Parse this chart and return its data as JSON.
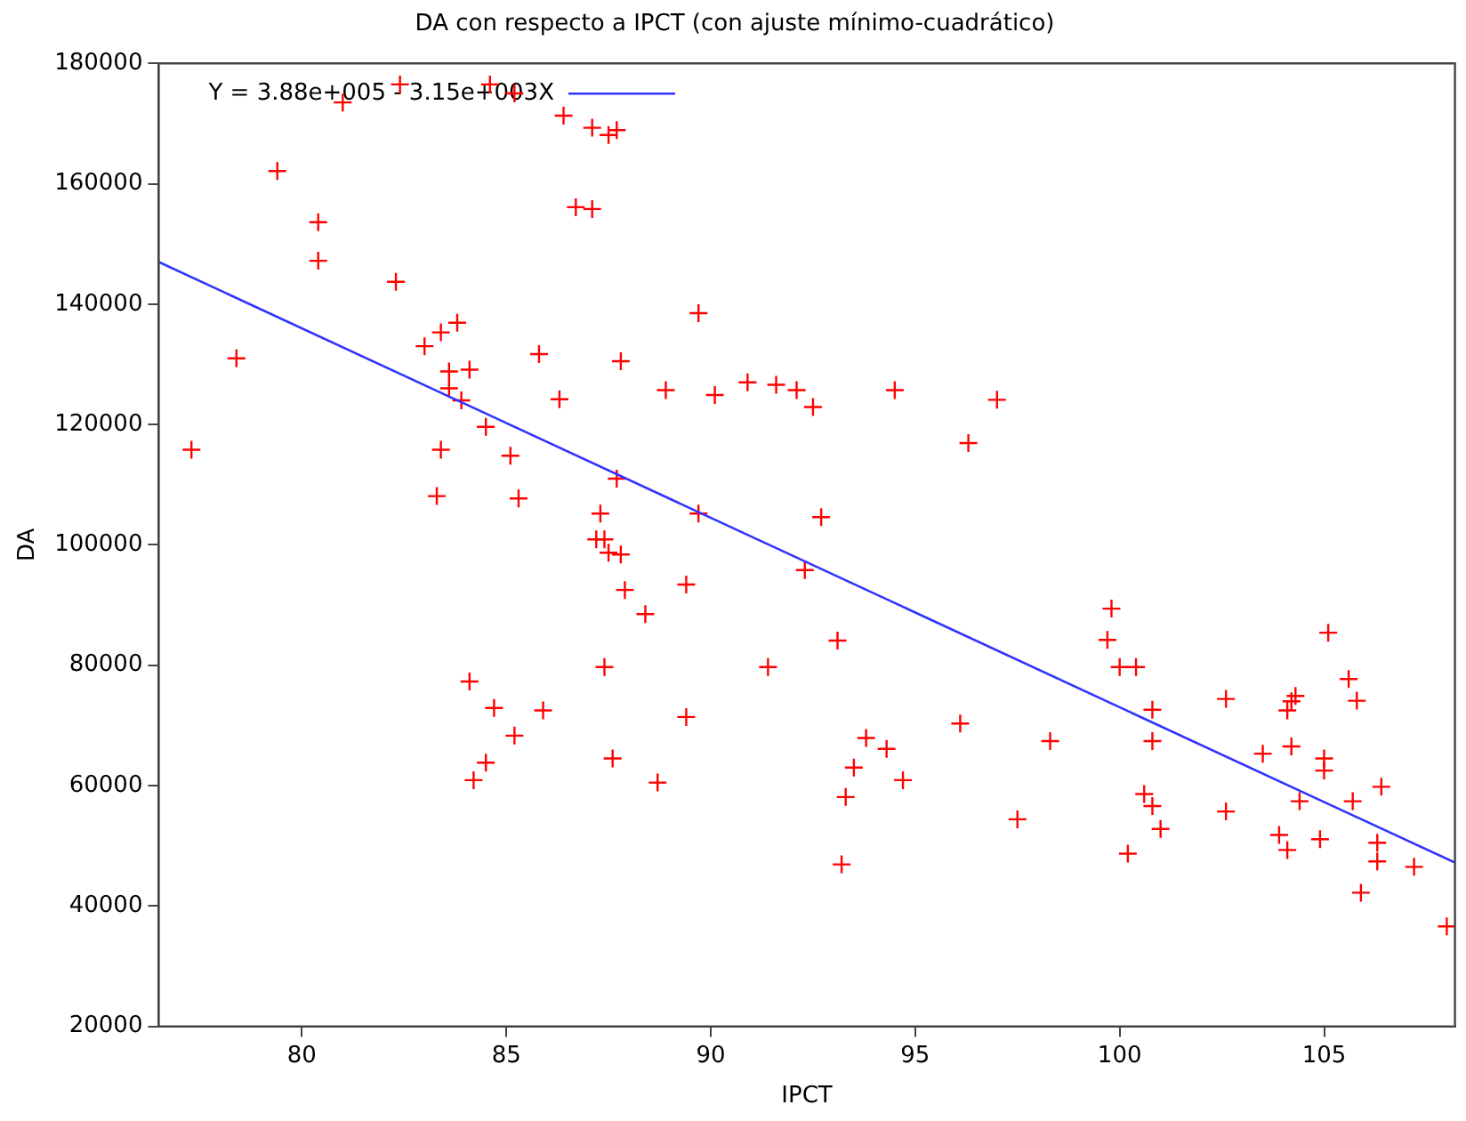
{
  "chart_data": {
    "type": "scatter",
    "title": "DA con respecto a IPCT (con ajuste mínimo-cuadrático)",
    "xlabel": "IPCT",
    "ylabel": "DA",
    "xlim": [
      76.5,
      108.2
    ],
    "xticks": [
      80,
      85,
      90,
      95,
      100,
      105
    ],
    "ylim": [
      20000,
      180000
    ],
    "yticks": [
      20000,
      40000,
      60000,
      80000,
      100000,
      120000,
      140000,
      160000,
      180000
    ],
    "grid": false,
    "legend": "top left",
    "marker": "cross",
    "series": [
      {
        "type": "scatter",
        "color": "#ff0000",
        "x": [
          77.3,
          78.4,
          79.4,
          80.4,
          80.4,
          81.0,
          82.4,
          82.3,
          83.0,
          83.4,
          83.8,
          83.6,
          84.1,
          83.6,
          83.9,
          84.5,
          85.8,
          86.3,
          86.4,
          86.7,
          87.1,
          87.1,
          83.4,
          85.1,
          83.3,
          85.3,
          84.6,
          85.2,
          87.5,
          87.7,
          89.7,
          87.8,
          88.9,
          90.1,
          90.9,
          91.6,
          92.1,
          92.5,
          94.5,
          87.7,
          87.3,
          89.7,
          92.7,
          87.2,
          87.4,
          87.5,
          87.8,
          87.9,
          89.4,
          88.4,
          87.4,
          91.4,
          84.1,
          84.7,
          85.9,
          89.4,
          85.2,
          84.5,
          84.2,
          87.6,
          88.7,
          97.0,
          96.3,
          92.3,
          93.1,
          99.8,
          99.7,
          100.0,
          100.4,
          100.8,
          100.8,
          96.1,
          98.3,
          93.8,
          94.3,
          93.5,
          94.7,
          93.3,
          100.6,
          100.8,
          101.0,
          97.5,
          100.2,
          93.2,
          102.6,
          102.6,
          105.1,
          105.6,
          105.8,
          104.3,
          104.2,
          104.1,
          104.2,
          103.5,
          105.0,
          105.0,
          104.4,
          105.7,
          106.4,
          103.9,
          104.1,
          104.9,
          106.3,
          106.3,
          107.2,
          105.9,
          108.0
        ],
        "values": [
          115800,
          131000,
          162100,
          153600,
          147200,
          173500,
          176500,
          143700,
          133000,
          135300,
          136900,
          128800,
          129100,
          126000,
          124000,
          119600,
          131700,
          124200,
          171300,
          156100,
          169300,
          155800,
          115800,
          114800,
          108100,
          107700,
          176500,
          175000,
          168100,
          168900,
          138500,
          130500,
          125700,
          124900,
          127000,
          126600,
          125700,
          122900,
          125700,
          111000,
          105200,
          105200,
          104600,
          100900,
          100900,
          98700,
          98400,
          92500,
          93400,
          88500,
          79700,
          79700,
          77300,
          72900,
          72500,
          71400,
          68300,
          63800,
          60900,
          64500,
          60500,
          124100,
          116900,
          95800,
          84100,
          89400,
          84200,
          79700,
          79700,
          72600,
          67400,
          70300,
          67400,
          67900,
          66100,
          63000,
          60900,
          58100,
          58600,
          56600,
          52800,
          54400,
          48700,
          46900,
          74400,
          55700,
          85400,
          77700,
          74100,
          74900,
          74000,
          72500,
          66500,
          65300,
          64500,
          62500,
          57400,
          57400,
          59800,
          51800,
          49300,
          51100,
          50500,
          47400,
          46500,
          42200,
          36600
        ]
      },
      {
        "type": "line",
        "name": "Y = 3.88e+005 - 3.15e+003X",
        "color": "#3333ff",
        "marker": "none",
        "x": [
          76.5,
          108.2
        ],
        "values": [
          147000,
          47200
        ]
      }
    ]
  }
}
